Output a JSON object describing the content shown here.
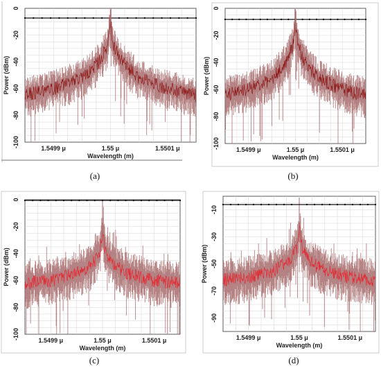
{
  "figure": {
    "panels": [
      "(a)",
      "(b)",
      "(c)",
      "(d)"
    ]
  },
  "colors": {
    "envelope": "#a86d6f",
    "trace_ab": "#8b1010",
    "trace_cd": "#e8202a",
    "grid": "#d6d6d6",
    "axis": "#333333"
  },
  "chart_data": [
    {
      "type": "line",
      "panel": "(a)",
      "xlabel": "Wavelength (m)",
      "ylabel": "Power (dBm)",
      "x_ticks": [
        "1.5499 μ",
        "1.55 μ",
        "1.5501 μ"
      ],
      "x_tick_values": [
        1.5499e-06,
        1.55e-06,
        1.5501e-06
      ],
      "y_ticks": [
        "0",
        "-20",
        "-40",
        "-60",
        "-80",
        "-100"
      ],
      "ylim": [
        -100,
        0
      ],
      "xlim": [
        1.54985e-06,
        1.55015e-06
      ],
      "series": [
        {
          "values_x": [
            1.54985e-06,
            1.5499e-06,
            1.54995e-06,
            1.54998e-06,
            1.549995e-06,
            1.55e-06,
            1.550005e-06,
            1.55002e-06,
            1.55005e-06,
            1.5501e-06,
            1.55015e-06
          ],
          "values_y": [
            -65,
            -60,
            -52,
            -40,
            -28,
            -10,
            -28,
            -40,
            -52,
            -60,
            -65
          ]
        }
      ]
    },
    {
      "type": "line",
      "panel": "(b)",
      "xlabel": "Wavelength (m)",
      "ylabel": "Power (dBm)",
      "x_ticks": [
        "1.5499 μ",
        "1.55 μ",
        "1.5501 μ"
      ],
      "x_tick_values": [
        1.5499e-06,
        1.55e-06,
        1.5501e-06
      ],
      "y_ticks": [
        "0",
        "-20",
        "-40",
        "-60",
        "-80",
        "-100"
      ],
      "ylim": [
        -100,
        0
      ],
      "xlim": [
        1.54985e-06,
        1.55015e-06
      ],
      "series": [
        {
          "values_x": [
            1.54985e-06,
            1.5499e-06,
            1.54995e-06,
            1.54998e-06,
            1.549995e-06,
            1.55e-06,
            1.550005e-06,
            1.55002e-06,
            1.55005e-06,
            1.5501e-06,
            1.55015e-06
          ],
          "values_y": [
            -64,
            -60,
            -52,
            -40,
            -27,
            -8,
            -27,
            -40,
            -52,
            -60,
            -65
          ]
        }
      ]
    },
    {
      "type": "line",
      "panel": "(c)",
      "xlabel": "Wavelength (m)",
      "ylabel": "Power (dBm)",
      "x_ticks": [
        "1.5499 μ",
        "1.55 μ",
        "1.5501 μ"
      ],
      "x_tick_values": [
        1.5499e-06,
        1.55e-06,
        1.5501e-06
      ],
      "y_ticks": [
        "0",
        "-20",
        "-40",
        "-60",
        "-80",
        "-100"
      ],
      "ylim": [
        -100,
        0
      ],
      "xlim": [
        1.54985e-06,
        1.55015e-06
      ],
      "series": [
        {
          "values_x": [
            1.54985e-06,
            1.5499e-06,
            1.54995e-06,
            1.54998e-06,
            1.549995e-06,
            1.55e-06,
            1.550005e-06,
            1.55002e-06,
            1.55005e-06,
            1.5501e-06,
            1.55015e-06
          ],
          "values_y": [
            -62,
            -60,
            -55,
            -48,
            -38,
            -24,
            -38,
            -48,
            -55,
            -60,
            -62
          ]
        }
      ]
    },
    {
      "type": "line",
      "panel": "(d)",
      "xlabel": "Wavelength (m)",
      "ylabel": "Power (dBm)",
      "x_ticks": [
        "1.5499 μ",
        "1.55 μ",
        "1.5501 μ"
      ],
      "x_tick_values": [
        1.5499e-06,
        1.55e-06,
        1.5501e-06
      ],
      "y_ticks": [
        "-10",
        "-30",
        "-50",
        "-70",
        "-90"
      ],
      "ylim": [
        -100,
        0
      ],
      "xlim": [
        1.54985e-06,
        1.55015e-06
      ],
      "series": [
        {
          "values_x": [
            1.54985e-06,
            1.5499e-06,
            1.54995e-06,
            1.54998e-06,
            1.549995e-06,
            1.55e-06,
            1.550005e-06,
            1.55002e-06,
            1.55005e-06,
            1.5501e-06,
            1.55015e-06
          ],
          "values_y": [
            -62,
            -60,
            -55,
            -48,
            -38,
            -22,
            -38,
            -48,
            -55,
            -60,
            -62
          ]
        }
      ]
    }
  ]
}
